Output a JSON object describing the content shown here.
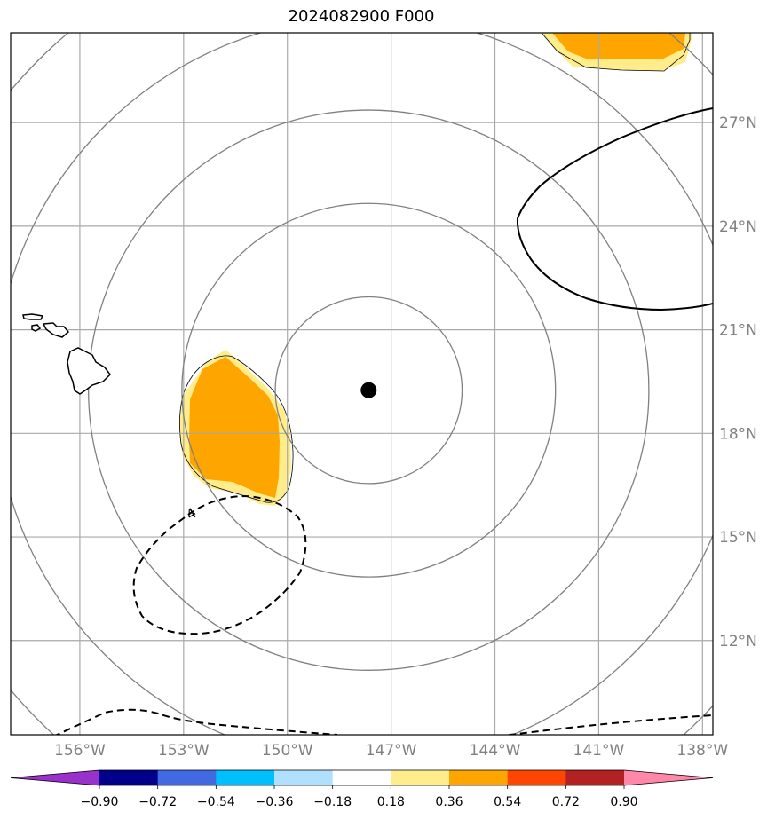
{
  "title": "2024082900 F000",
  "map": {
    "lon_min": -158.0,
    "lon_max": -137.7,
    "lat_min": 9.27,
    "lat_max": 29.6,
    "gridline_color": "#a9a9a9",
    "land_outline_color": "#000000",
    "lon_ticks": [
      {
        "value": -156,
        "label": "156°W"
      },
      {
        "value": -153,
        "label": "153°W"
      },
      {
        "value": -150,
        "label": "150°W"
      },
      {
        "value": -147,
        "label": "147°W"
      },
      {
        "value": -144,
        "label": "144°W"
      },
      {
        "value": -141,
        "label": "141°W"
      },
      {
        "value": -138,
        "label": "138°W"
      }
    ],
    "lat_ticks": [
      {
        "value": 27,
        "label": "27°N"
      },
      {
        "value": 24,
        "label": "24°N"
      },
      {
        "value": 21,
        "label": "21°N"
      },
      {
        "value": 18,
        "label": "18°N"
      },
      {
        "value": 15,
        "label": "15°N"
      },
      {
        "value": 12,
        "label": "12°N"
      }
    ]
  },
  "storm_center": {
    "lon": -147.65,
    "lat": 19.25,
    "marker": "filled-circle",
    "color": "#000000"
  },
  "range_rings": {
    "center_lon": -147.65,
    "center_lat": 19.25,
    "radii_deg": [
      2.7,
      5.4,
      8.1,
      10.8,
      13.5
    ],
    "color": "#808080"
  },
  "contours": [
    {
      "label": "4",
      "style": "dashed"
    },
    {
      "label": "",
      "style": "dashed"
    },
    {
      "label": "",
      "style": "solid"
    }
  ],
  "colorbar": {
    "ticks": [
      "−0.90",
      "−0.72",
      "−0.54",
      "−0.36",
      "−0.18",
      "0.18",
      "0.36",
      "0.54",
      "0.72",
      "0.90"
    ],
    "colors": [
      "#9932cc",
      "#00008b",
      "#4169e1",
      "#00bfff",
      "#b0e0ff",
      "#ffffff",
      "#ffec8b",
      "#ffa500",
      "#ff4500",
      "#b22222",
      "#ff88aa"
    ]
  }
}
